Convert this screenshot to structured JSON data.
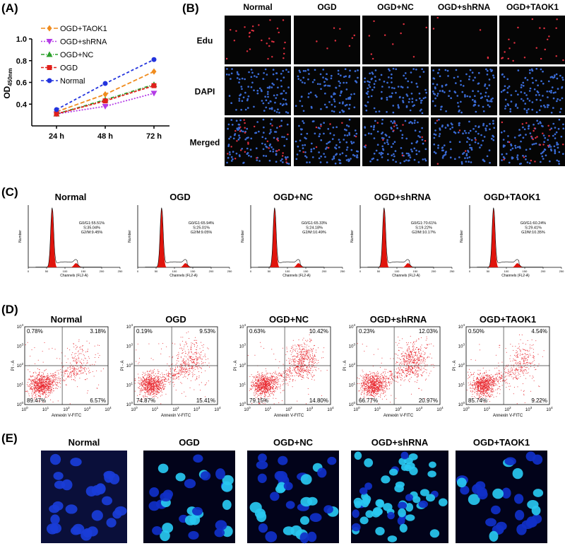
{
  "chart_data": {
    "type": "line",
    "panel_label": "(A)",
    "ylabel": "OD",
    "ylabel_sub": "450nm",
    "categories": [
      "24 h",
      "48 h",
      "72 h"
    ],
    "ylim": [
      0.2,
      1.0
    ],
    "yticks": [
      0.4,
      0.6,
      0.8,
      {
        "value": 1,
        "label": "1.0"
      }
    ],
    "series": [
      {
        "name": "OGD+TAOK1",
        "color": "#f08c1e",
        "marker": "diamond",
        "dash": "6,3",
        "values": [
          0.33,
          0.49,
          0.7
        ]
      },
      {
        "name": "OGD+shRNA",
        "color": "#b43ce6",
        "marker": "triangle-down",
        "dash": "2,2",
        "values": [
          0.31,
          0.38,
          0.5
        ]
      },
      {
        "name": "OGD+NC",
        "color": "#2ca02c",
        "marker": "triangle-up",
        "dash": "5,2,1,2",
        "values": [
          0.31,
          0.44,
          0.58
        ]
      },
      {
        "name": "OGD",
        "color": "#e0201b",
        "marker": "square",
        "dash": "4,2",
        "values": [
          0.31,
          0.43,
          0.57
        ]
      },
      {
        "name": "Normal",
        "color": "#2233dd",
        "marker": "circle",
        "dash": "4,3",
        "values": [
          0.35,
          0.59,
          0.81
        ]
      }
    ]
  },
  "panel_b": {
    "label": "(B)",
    "columns": [
      "Normal",
      "OGD",
      "OGD+NC",
      "OGD+shRNA",
      "OGD+TAOK1"
    ],
    "rows": [
      "Edu",
      "DAPI",
      "Merged"
    ]
  },
  "panel_c": {
    "label": "(C)",
    "x_axis_label": "Channels (FL2-A)",
    "y_axis_label": "Number",
    "xticks": [
      0,
      50,
      100,
      150,
      200,
      250
    ],
    "plots": [
      {
        "title": "Normal",
        "stats": [
          "G0/G1:55.51%",
          "S:35.04%",
          "G2/M:9.45%"
        ]
      },
      {
        "title": "OGD",
        "stats": [
          "G0/G1:65.94%",
          "S:25.01%",
          "G2/M:9.05%"
        ]
      },
      {
        "title": "OGD+NC",
        "stats": [
          "G0/G1:65.33%",
          "S:24.18%",
          "G2/M:10.49%"
        ]
      },
      {
        "title": "OGD+shRNA",
        "stats": [
          "G0/G1:70.61%",
          "S:19.22%",
          "G2/M:10.17%"
        ]
      },
      {
        "title": "OGD+TAOK1",
        "stats": [
          "G0/G1:60.24%",
          "S:29.41%",
          "G2/M:10.35%"
        ]
      }
    ]
  },
  "panel_d": {
    "label": "(D)",
    "x_axis_label": "Annexin V-FITC",
    "y_axis_label": "PI - A",
    "tick_base": "10",
    "tick_exponents": [
      0,
      1,
      2,
      3,
      4
    ],
    "plots": [
      {
        "title": "Normal",
        "upper_left": "0.78%",
        "upper_right": "3.18%",
        "lower_left": "89.47%",
        "lower_right": "6.57%"
      },
      {
        "title": "OGD",
        "upper_left": "0.19%",
        "upper_right": "9.53%",
        "lower_left": "74.87%",
        "lower_right": "15.41%"
      },
      {
        "title": "OGD+NC",
        "upper_left": "0.63%",
        "upper_right": "10.42%",
        "lower_left": "79.15%",
        "lower_right": "14.80%"
      },
      {
        "title": "OGD+shRNA",
        "upper_left": "0.23%",
        "upper_right": "12.03%",
        "lower_left": "66.77%",
        "lower_right": "20.97%"
      },
      {
        "title": "OGD+TAOK1",
        "upper_left": "0.50%",
        "upper_right": "4.54%",
        "lower_left": "85.74%",
        "lower_right": "9.22%"
      }
    ]
  },
  "panel_e": {
    "label": "(E)",
    "titles": [
      "Normal",
      "OGD",
      "OGD+NC",
      "OGD+shRNA",
      "OGD+TAOK1"
    ]
  }
}
